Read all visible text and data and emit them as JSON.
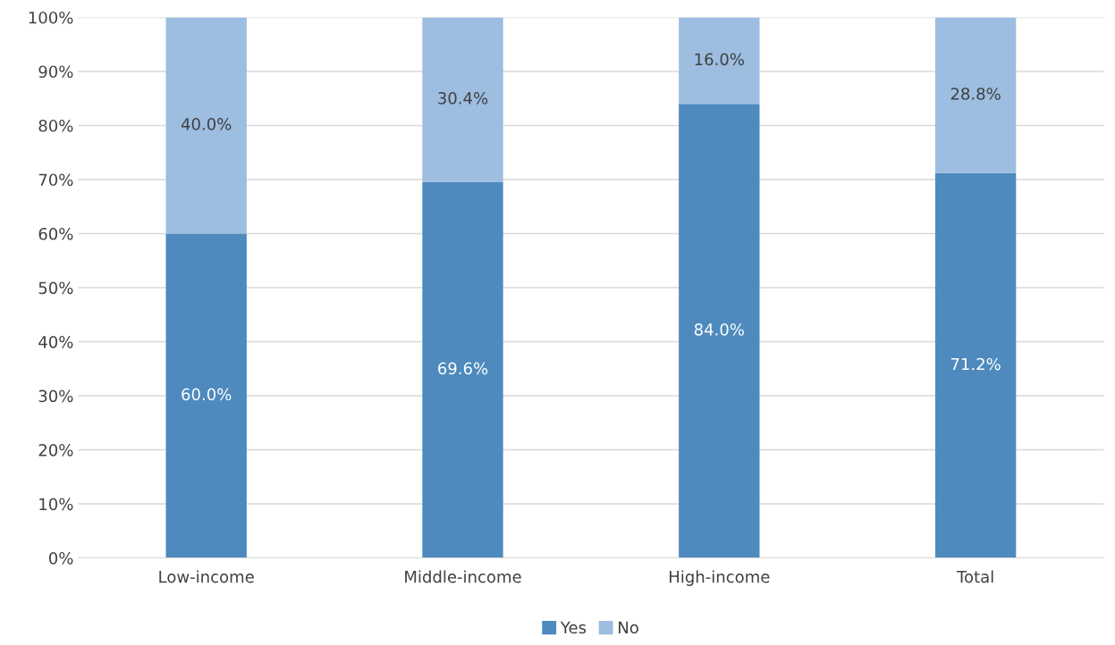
{
  "chart_data": {
    "type": "bar",
    "stacked": true,
    "categories": [
      "Low-income",
      "Middle-income",
      "High-income",
      "Total"
    ],
    "series": [
      {
        "name": "Yes",
        "color": "#4e8abe",
        "values": [
          60.0,
          69.6,
          84.0,
          71.2
        ],
        "value_labels": [
          "60.0%",
          "69.6%",
          "84.0%",
          "71.2%"
        ]
      },
      {
        "name": "No",
        "color": "#9dbde1",
        "values": [
          40.0,
          30.4,
          16.0,
          28.8
        ],
        "value_labels": [
          "40.0%",
          "30.4%",
          "16.0%",
          "28.8%"
        ]
      }
    ],
    "ylim": [
      0,
      100
    ],
    "yticks": [
      {
        "value": 0,
        "label": "0%"
      },
      {
        "value": 10,
        "label": "10%"
      },
      {
        "value": 20,
        "label": "20%"
      },
      {
        "value": 30,
        "label": "30%"
      },
      {
        "value": 40,
        "label": "40%"
      },
      {
        "value": 50,
        "label": "50%"
      },
      {
        "value": 60,
        "label": "60%"
      },
      {
        "value": 70,
        "label": "70%"
      },
      {
        "value": 80,
        "label": "80%"
      },
      {
        "value": 90,
        "label": "90%"
      },
      {
        "value": 100,
        "label": "100%"
      }
    ],
    "grid": "y",
    "legend": "bottom"
  }
}
